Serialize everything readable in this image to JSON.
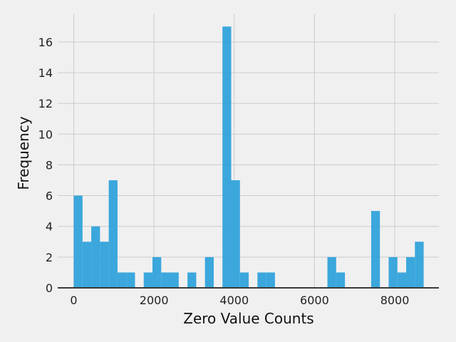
{
  "chart_data": {
    "type": "bar",
    "title": "",
    "xlabel": "Zero Value Counts",
    "ylabel": "Frequency",
    "xlim": [
      -400,
      9100
    ],
    "ylim": [
      0,
      17.8
    ],
    "bin_width": 218,
    "bins": [
      {
        "x0": 0,
        "count": 6
      },
      {
        "x0": 218,
        "count": 3
      },
      {
        "x0": 436,
        "count": 4
      },
      {
        "x0": 654,
        "count": 3
      },
      {
        "x0": 872,
        "count": 7
      },
      {
        "x0": 1090,
        "count": 1
      },
      {
        "x0": 1308,
        "count": 1
      },
      {
        "x0": 1744,
        "count": 1
      },
      {
        "x0": 1962,
        "count": 2
      },
      {
        "x0": 2180,
        "count": 1
      },
      {
        "x0": 2398,
        "count": 1
      },
      {
        "x0": 2834,
        "count": 1
      },
      {
        "x0": 3270,
        "count": 2
      },
      {
        "x0": 3706,
        "count": 17
      },
      {
        "x0": 3924,
        "count": 7
      },
      {
        "x0": 4142,
        "count": 1
      },
      {
        "x0": 4578,
        "count": 1
      },
      {
        "x0": 4796,
        "count": 1
      },
      {
        "x0": 6322,
        "count": 2
      },
      {
        "x0": 6540,
        "count": 1
      },
      {
        "x0": 7412,
        "count": 5
      },
      {
        "x0": 7848,
        "count": 2
      },
      {
        "x0": 8066,
        "count": 1
      },
      {
        "x0": 8284,
        "count": 2
      },
      {
        "x0": 8502,
        "count": 3
      }
    ],
    "x_ticks": [
      {
        "value": 0,
        "label": "0"
      },
      {
        "value": 2000,
        "label": "2000"
      },
      {
        "value": 4000,
        "label": "4000"
      },
      {
        "value": 6000,
        "label": "6000"
      },
      {
        "value": 8000,
        "label": "8000"
      }
    ],
    "y_ticks": [
      {
        "value": 0,
        "label": "0"
      },
      {
        "value": 2,
        "label": "2"
      },
      {
        "value": 4,
        "label": "4"
      },
      {
        "value": 6,
        "label": "6"
      },
      {
        "value": 8,
        "label": "8"
      },
      {
        "value": 10,
        "label": "10"
      },
      {
        "value": 12,
        "label": "12"
      },
      {
        "value": 14,
        "label": "14"
      },
      {
        "value": 16,
        "label": "16"
      }
    ],
    "grid": true,
    "colors": {
      "bar": "#30a2da",
      "grid": "#cbcbcb",
      "background": "#f0f0f0",
      "baseline": "#3a3a3a"
    }
  }
}
